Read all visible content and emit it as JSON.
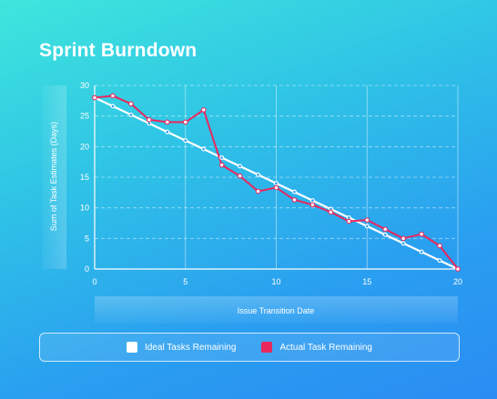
{
  "colors": {
    "ideal": "#ffffff",
    "actual": "#e8285e"
  },
  "chart_data": {
    "type": "line",
    "title": "Sprint Burndown",
    "xlabel": "Issue Transition Date",
    "ylabel": "Sum of Task Estimates (Days)",
    "xlim": [
      0,
      20
    ],
    "ylim": [
      0,
      30
    ],
    "xticks": [
      0,
      5,
      10,
      15,
      20
    ],
    "yticks": [
      0,
      5,
      10,
      15,
      20,
      25,
      30
    ],
    "grid": true,
    "legend_position": "bottom",
    "series": [
      {
        "name": "Ideal Tasks Remaining",
        "x": [
          0,
          1,
          2,
          3,
          4,
          5,
          6,
          7,
          8,
          9,
          10,
          11,
          12,
          13,
          14,
          15,
          16,
          17,
          18,
          19,
          20
        ],
        "y": [
          28.0,
          26.6,
          25.2,
          23.8,
          22.4,
          21.0,
          19.6,
          18.2,
          16.8,
          15.4,
          14.0,
          12.6,
          11.2,
          9.8,
          8.4,
          7.0,
          5.6,
          4.2,
          2.8,
          1.4,
          0.0
        ]
      },
      {
        "name": "Actual Task Remaining",
        "x": [
          0,
          1,
          2,
          3,
          4,
          5,
          6,
          7,
          8,
          9,
          10,
          11,
          12,
          13,
          14,
          15,
          16,
          17,
          18,
          19,
          20
        ],
        "y": [
          28.0,
          28.3,
          27.0,
          24.4,
          24.0,
          24.0,
          26.0,
          17.0,
          15.2,
          12.7,
          13.3,
          11.3,
          10.5,
          9.3,
          7.8,
          8.0,
          6.5,
          5.0,
          5.7,
          3.8,
          0.0
        ]
      }
    ]
  }
}
